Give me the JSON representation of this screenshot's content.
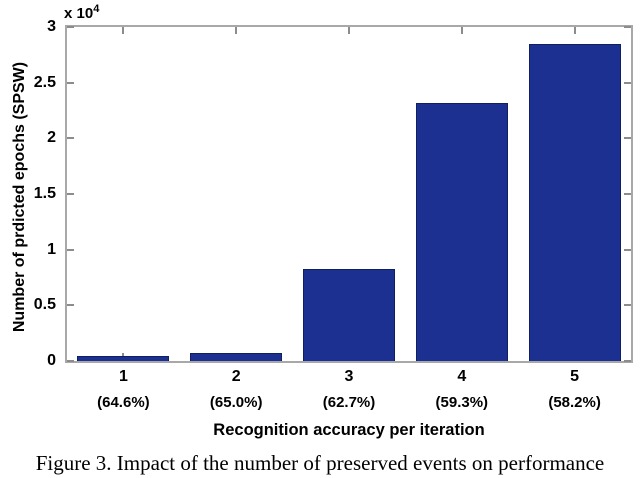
{
  "chart_data": {
    "type": "bar",
    "title": "",
    "xlabel": "Recognition accuracy per iteration",
    "ylabel": "Number of prdicted epochs (SPSW)",
    "y_multiplier_base": "x 10",
    "y_multiplier_exp": "4",
    "categories": [
      "1",
      "2",
      "3",
      "4",
      "5"
    ],
    "category_sublabels": [
      "(64.6%)",
      "(65.0%)",
      "(62.7%)",
      "(59.3%)",
      "(58.2%)"
    ],
    "series": [
      {
        "name": "Number of predicted epochs (SPSW)",
        "values_x10e4": [
          0.045,
          0.07,
          0.83,
          2.32,
          2.85
        ],
        "values_epochs": [
          450,
          700,
          8300,
          23200,
          28500
        ]
      }
    ],
    "ylim": [
      0,
      3
    ],
    "yticks": [
      0,
      0.5,
      1,
      1.5,
      2,
      2.5,
      3
    ],
    "ytick_labels": [
      "0",
      "0.5",
      "1",
      "1.5",
      "2",
      "2.5",
      "3"
    ],
    "grid": false,
    "legend": null,
    "bar_width_fraction": 0.82,
    "colors": {
      "bar_fill": "#1c3092",
      "bar_edge": "#10205f",
      "axis_box": "#a8a8a8",
      "tick": "#8c8c8c",
      "text": "#000000"
    }
  },
  "caption": "Figure 3. Impact of the number of preserved events on performance"
}
